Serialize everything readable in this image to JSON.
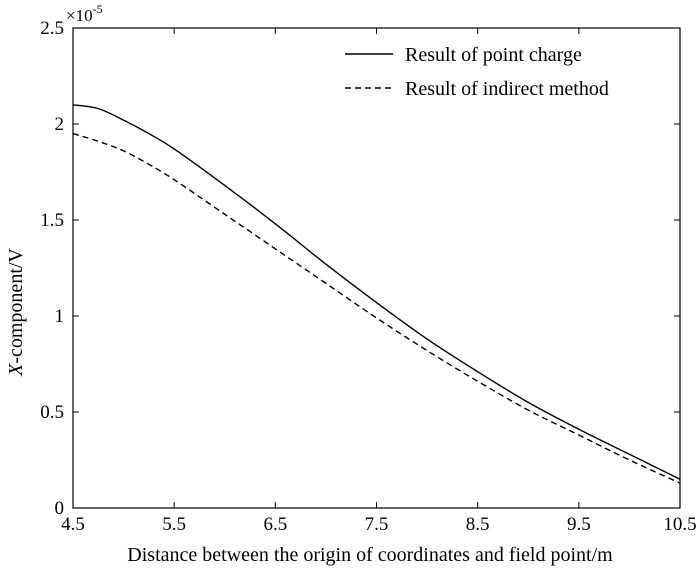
{
  "chart_data": {
    "type": "line",
    "title": "",
    "xlabel": "Distance between the origin of coordinates and field point/m",
    "ylabel_italic": "X",
    "ylabel_rest": "-component/V",
    "y_multiplier_base": "×10",
    "y_multiplier_exponent": "-5",
    "xlim": [
      4.5,
      10.5
    ],
    "ylim": [
      0,
      2.5
    ],
    "x_ticks": [
      "4.5",
      "5.5",
      "6.5",
      "7.5",
      "8.5",
      "9.5",
      "10.5"
    ],
    "y_ticks": [
      "0",
      "0.5",
      "1",
      "1.5",
      "2",
      "2.5"
    ],
    "grid": false,
    "legend_position": "top-right",
    "series": [
      {
        "name": "Result of point charge",
        "style": "solid",
        "color": "#000000",
        "x": [
          4.5,
          4.75,
          5.0,
          5.25,
          5.5,
          6.0,
          6.5,
          7.0,
          7.5,
          8.0,
          8.5,
          9.0,
          9.5,
          10.0,
          10.5
        ],
        "y": [
          2.1,
          2.08,
          2.02,
          1.95,
          1.87,
          1.68,
          1.48,
          1.27,
          1.07,
          0.88,
          0.71,
          0.55,
          0.41,
          0.28,
          0.15
        ]
      },
      {
        "name": "Result of indirect method",
        "style": "dashed",
        "color": "#000000",
        "x": [
          4.5,
          4.75,
          5.0,
          5.25,
          5.5,
          6.0,
          6.5,
          7.0,
          7.5,
          8.0,
          8.5,
          9.0,
          9.5,
          10.0,
          10.5
        ],
        "y": [
          1.95,
          1.91,
          1.86,
          1.79,
          1.71,
          1.53,
          1.35,
          1.17,
          0.99,
          0.82,
          0.66,
          0.51,
          0.38,
          0.25,
          0.13
        ]
      }
    ]
  }
}
